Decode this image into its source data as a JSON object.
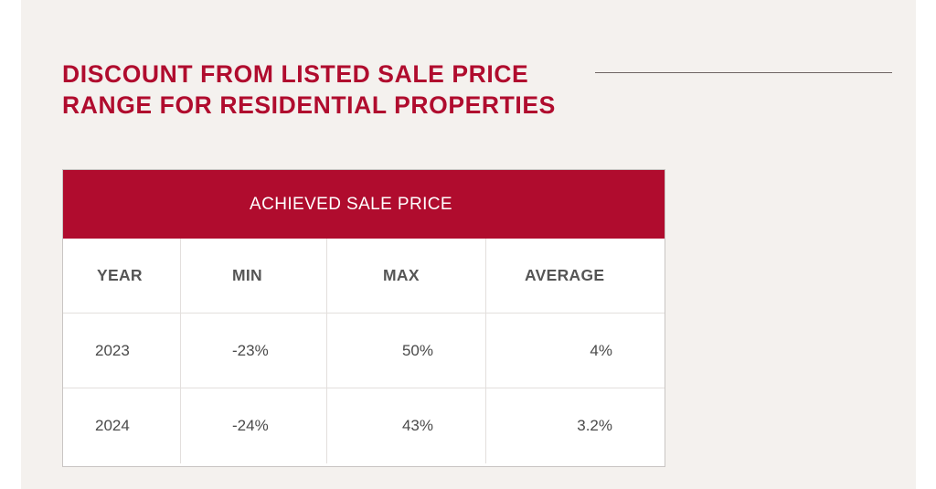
{
  "title": {
    "line1": "DISCOUNT FROM LISTED SALE PRICE",
    "line2": "RANGE FOR RESIDENTIAL PROPERTIES"
  },
  "table": {
    "header": "ACHIEVED SALE PRICE",
    "columns": [
      "YEAR",
      "MIN",
      "MAX",
      "AVERAGE"
    ],
    "rows": [
      [
        "2023",
        "-23%",
        "50%",
        "4%"
      ],
      [
        "2024",
        "-24%",
        "43%",
        "3.2%"
      ]
    ]
  },
  "colors": {
    "accent": "#b00c2e",
    "background": "#f4f1ee",
    "text": "#4a4a4a"
  }
}
